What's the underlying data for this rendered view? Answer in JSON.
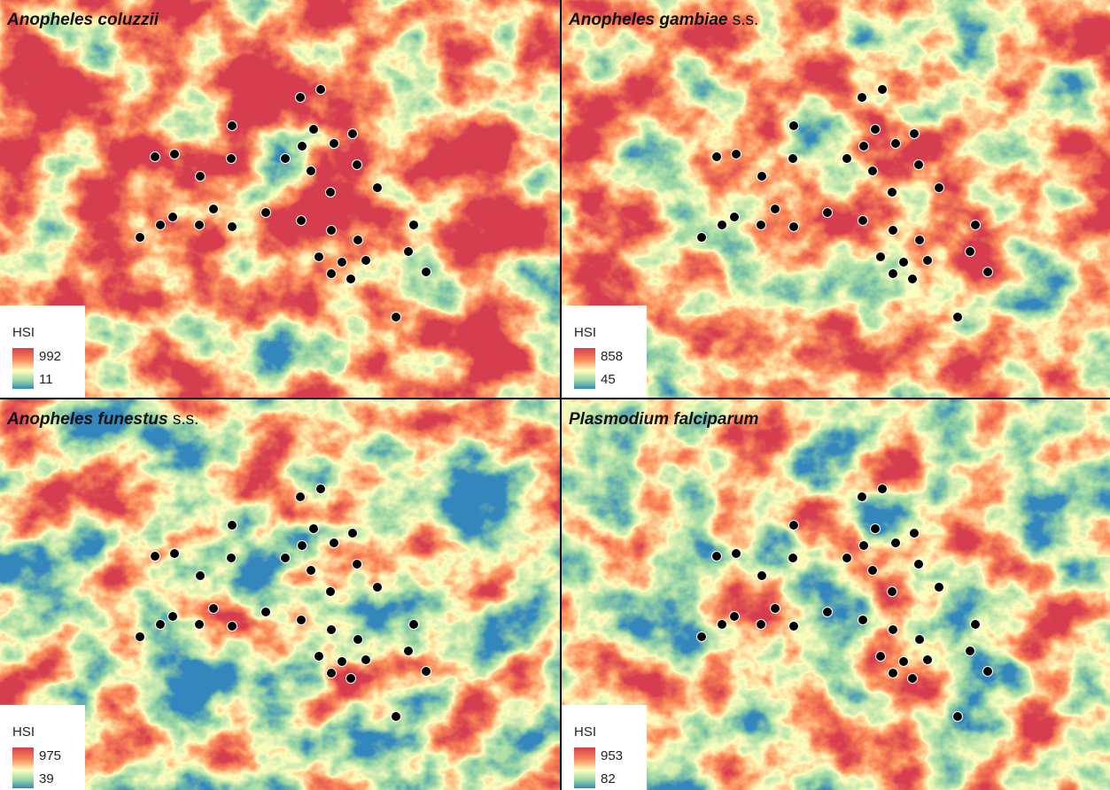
{
  "panels": [
    {
      "title": {
        "species": "Anopheles coluzzii"
      },
      "legend": {
        "title": "HSI",
        "max": 992,
        "min": 11
      }
    },
    {
      "title": {
        "species": "Anopheles gambiae",
        "suffix": "s.s."
      },
      "legend": {
        "title": "HSI",
        "max": 858,
        "min": 45
      }
    },
    {
      "title": {
        "species": "Anopheles funestus",
        "suffix": "s.s."
      },
      "legend": {
        "title": "HSI",
        "max": 975,
        "min": 39
      }
    },
    {
      "title": {
        "species": "Plasmodium falciparum"
      },
      "legend": {
        "title": "HSI",
        "max": 953,
        "min": 82
      }
    }
  ]
}
